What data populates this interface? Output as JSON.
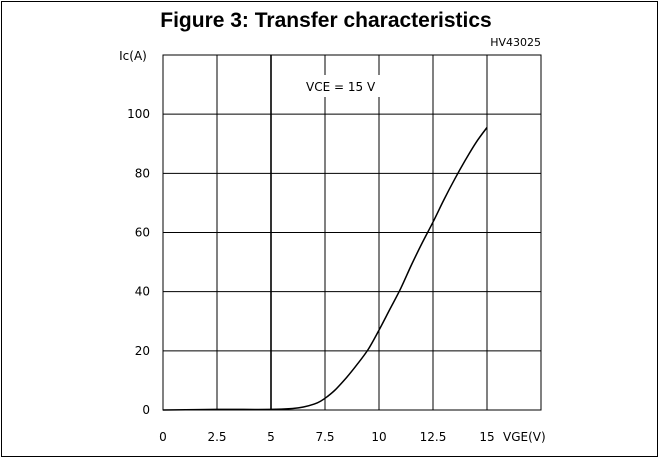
{
  "chart_data": {
    "type": "line",
    "title": "Figure 3: Transfer characteristics",
    "figure_code": "HV43025",
    "annotation": "VCE = 15 V",
    "ylabel": "Ic(A)",
    "xlabel": "VGE(V)",
    "xlim": [
      0,
      17.5
    ],
    "ylim": [
      0,
      120
    ],
    "x_ticks": [
      0,
      2.5,
      5,
      7.5,
      10,
      12.5,
      15
    ],
    "y_ticks": [
      0,
      20,
      40,
      60,
      80,
      100
    ],
    "x_tick_labels": [
      "0",
      "2.5",
      "5",
      "7.5",
      "10",
      "12.5",
      "15"
    ],
    "y_tick_labels": [
      "0",
      "20",
      "40",
      "60",
      "80",
      "100"
    ],
    "grid": true,
    "series": [
      {
        "x": [
          0,
          2.5,
          5,
          6,
          6.5,
          7,
          7.3,
          7.6,
          8,
          8.5,
          9,
          9.5,
          10,
          10.5,
          11,
          11.5,
          12,
          12.5,
          13,
          13.5,
          14,
          14.5,
          15
        ],
        "y": [
          0,
          0.2,
          0.2,
          0.5,
          1,
          2,
          3,
          4.5,
          7,
          11,
          15.5,
          20.5,
          27,
          34,
          41,
          49,
          56.5,
          63.5,
          71,
          78,
          84.5,
          90.5,
          95.5
        ]
      }
    ]
  },
  "colors": {
    "line": "#000000",
    "grid": "#000000",
    "frame": "#000000"
  }
}
